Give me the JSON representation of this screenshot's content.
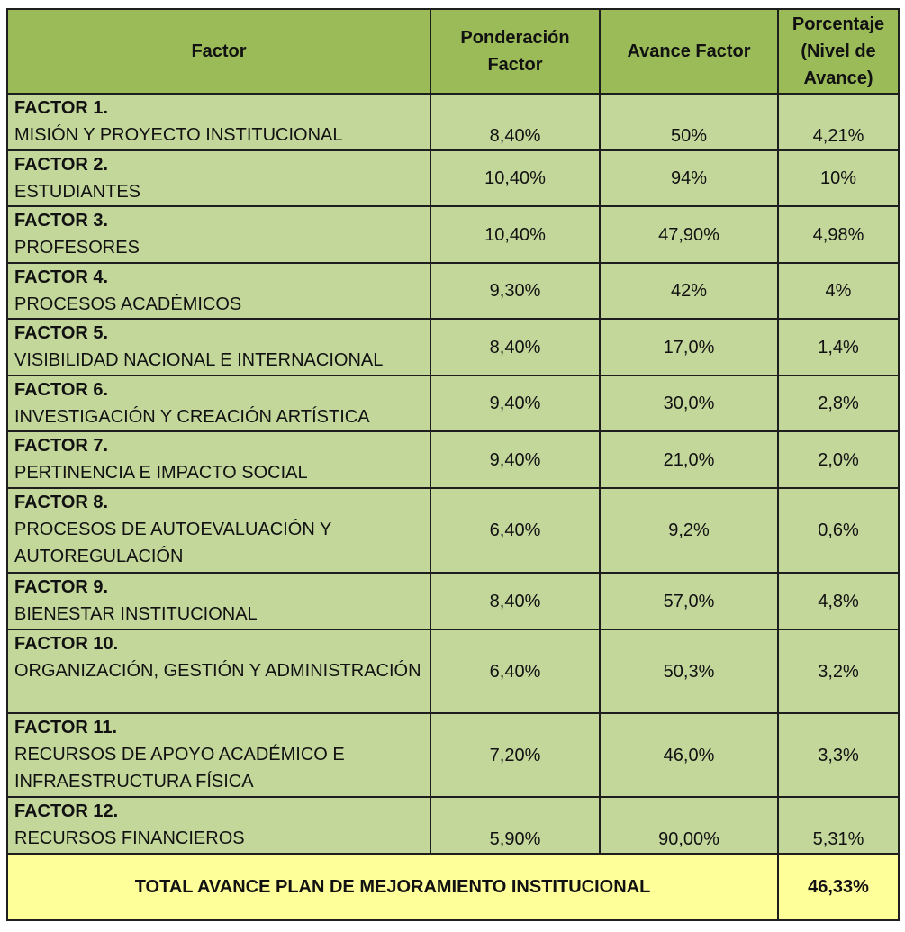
{
  "header": {
    "factor": "Factor",
    "ponderacion": "Ponderación Factor",
    "avance": "Avance Factor",
    "porcentaje": "Porcentaje (Nivel de Avance)"
  },
  "rows": [
    {
      "name": "FACTOR 1.",
      "desc": "MISIÓN Y PROYECTO INSTITUCIONAL",
      "ponderacion": "8,40%",
      "avance": "50%",
      "porcentaje": "4,21%",
      "valign": "bottom"
    },
    {
      "name": "FACTOR 2.",
      "desc": "ESTUDIANTES",
      "ponderacion": "10,40%",
      "avance": "94%",
      "porcentaje": "10%",
      "valign": "middle"
    },
    {
      "name": "FACTOR 3.",
      "desc": "PROFESORES",
      "ponderacion": "10,40%",
      "avance": "47,90%",
      "porcentaje": "4,98%",
      "valign": "middle"
    },
    {
      "name": "FACTOR 4.",
      "desc": "PROCESOS ACADÉMICOS",
      "ponderacion": "9,30%",
      "avance": "42%",
      "porcentaje": "4%",
      "valign": "middle"
    },
    {
      "name": "FACTOR 5.",
      "desc": "VISIBILIDAD NACIONAL E INTERNACIONAL",
      "ponderacion": "8,40%",
      "avance": "17,0%",
      "porcentaje": "1,4%",
      "valign": "middle"
    },
    {
      "name": "FACTOR 6.",
      "desc": "INVESTIGACIÓN Y CREACIÓN ARTÍSTICA",
      "ponderacion": "9,40%",
      "avance": "30,0%",
      "porcentaje": "2,8%",
      "valign": "middle"
    },
    {
      "name": "FACTOR 7.",
      "desc": "PERTINENCIA E IMPACTO SOCIAL",
      "ponderacion": "9,40%",
      "avance": "21,0%",
      "porcentaje": "2,0%",
      "valign": "middle"
    },
    {
      "name": "FACTOR 8.",
      "desc": "PROCESOS DE AUTOEVALUACIÓN Y AUTOREGULACIÓN",
      "ponderacion": "6,40%",
      "avance": "9,2%",
      "porcentaje": "0,6%",
      "valign": "middle"
    },
    {
      "name": "FACTOR 9.",
      "desc": "BIENESTAR INSTITUCIONAL",
      "ponderacion": "8,40%",
      "avance": "57,0%",
      "porcentaje": "4,8%",
      "valign": "middle"
    },
    {
      "name": "FACTOR 10.",
      "desc": "ORGANIZACIÓN, GESTIÓN Y ADMINISTRACIÓN",
      "ponderacion": "6,40%",
      "avance": "50,3%",
      "porcentaje": "3,2%",
      "valign": "middle"
    },
    {
      "name": "FACTOR 11.",
      "desc": "RECURSOS DE APOYO ACADÉMICO E INFRAESTRUCTURA FÍSICA",
      "ponderacion": "7,20%",
      "avance": "46,0%",
      "porcentaje": "3,3%",
      "valign": "middle"
    },
    {
      "name": "FACTOR 12.",
      "desc": "RECURSOS FINANCIEROS",
      "ponderacion": "5,90%",
      "avance": "90,00%",
      "porcentaje": "5,31%",
      "valign": "bottom"
    }
  ],
  "total": {
    "label": "TOTAL AVANCE PLAN DE MEJORAMIENTO INSTITUCIONAL",
    "value": "46,33%"
  }
}
